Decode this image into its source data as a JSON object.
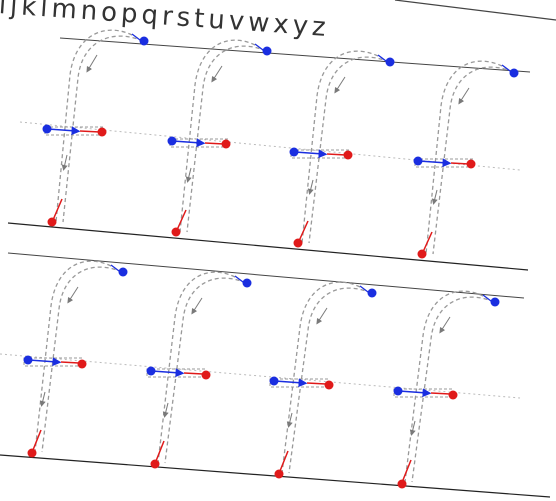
{
  "header": {
    "alphabet_strip": "ijklmnopqrstuvwxyz"
  },
  "worksheet": {
    "letter": "f",
    "rows": 2,
    "letters_per_row": 4,
    "colors": {
      "start_dot": "#1a2ee0",
      "end_dot": "#e01a1a",
      "guide_stroke": "#9a9a9a",
      "baseline": "#222222",
      "midline": "#b8b8b8"
    }
  }
}
